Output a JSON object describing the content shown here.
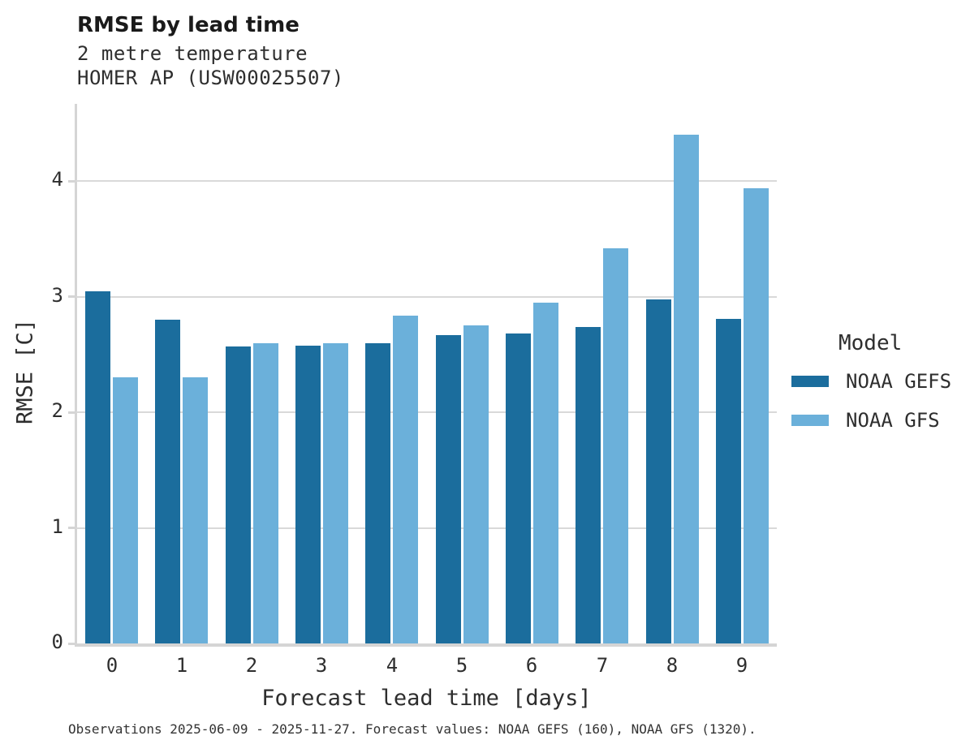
{
  "header": {
    "title": "RMSE by lead time",
    "subtitle_line1": "2 metre temperature",
    "subtitle_line2": "HOMER AP (USW00025507)"
  },
  "chart_data": {
    "type": "bar",
    "title": "RMSE by lead time",
    "subtitle": [
      "2 metre temperature",
      "HOMER AP (USW00025507)"
    ],
    "categories": [
      "0",
      "1",
      "2",
      "3",
      "4",
      "5",
      "6",
      "7",
      "8",
      "9"
    ],
    "series": [
      {
        "name": "NOAA GEFS",
        "color": "#1b6d9d",
        "values": [
          3.05,
          2.8,
          2.57,
          2.58,
          2.6,
          2.67,
          2.68,
          2.74,
          2.98,
          2.81
        ]
      },
      {
        "name": "NOAA GFS",
        "color": "#6bb0da",
        "values": [
          2.3,
          2.3,
          2.6,
          2.6,
          2.84,
          2.75,
          2.95,
          3.42,
          4.4,
          3.94
        ]
      }
    ],
    "xlabel": "Forecast lead time [days]",
    "ylabel": "RMSE [C]",
    "ylim": [
      0,
      4.67
    ],
    "yticks": [
      0,
      1,
      2,
      3,
      4
    ],
    "grid": "horizontal",
    "legend_position": "right"
  },
  "legend": {
    "title": "Model",
    "entries": [
      {
        "label": "NOAA GEFS",
        "color": "#1b6d9d"
      },
      {
        "label": "NOAA GFS",
        "color": "#6bb0da"
      }
    ]
  },
  "footer": {
    "caption": "Observations 2025-06-09 - 2025-11-27. Forecast values: NOAA GEFS (160), NOAA GFS (1320)."
  },
  "colors": {
    "axis": "#d5d5d5",
    "gridline": "#d9d9d9",
    "title_text": "#1a1a1a",
    "body_text": "#2e2e2e"
  }
}
